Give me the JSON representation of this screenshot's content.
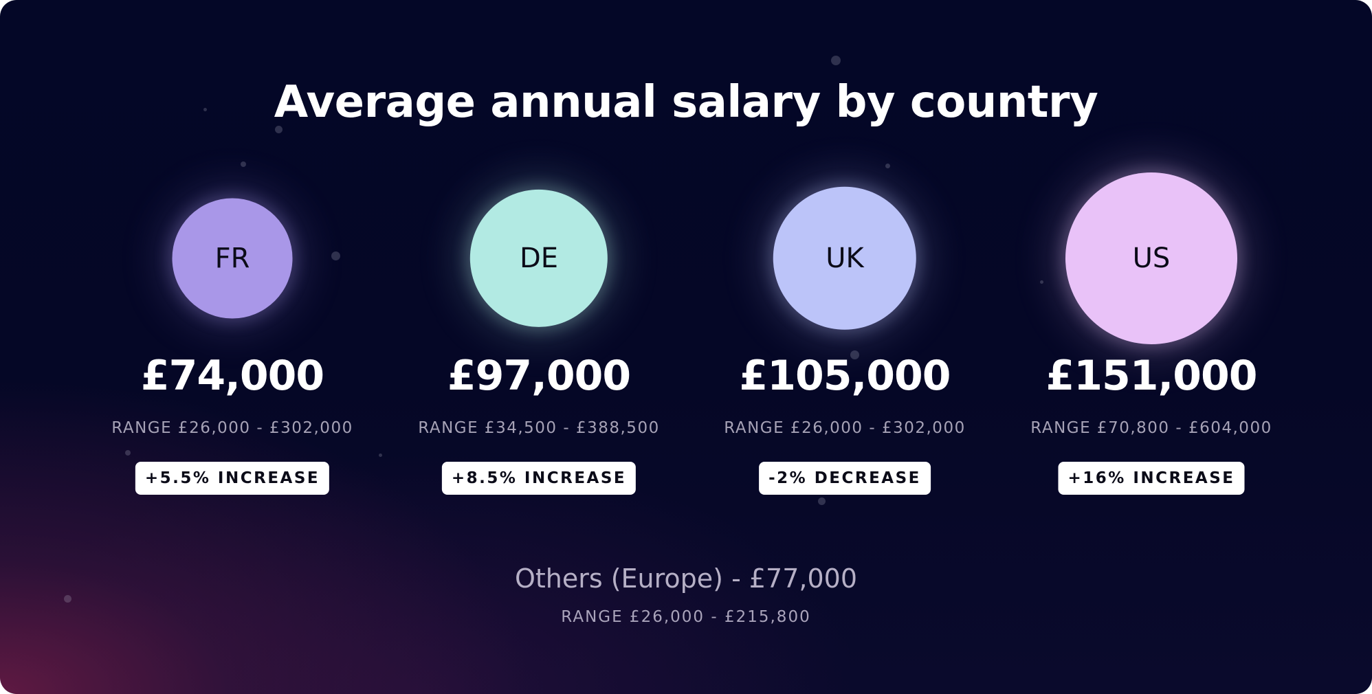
{
  "chart_data": {
    "type": "bubble",
    "title": "Average annual salary by country",
    "currency": "£",
    "countries": [
      {
        "code": "FR",
        "value": 74000,
        "value_label": "£74,000",
        "range": [
          26000,
          302000
        ],
        "range_label": "RANGE £26,000 - £302,000",
        "change_pct": 5.5,
        "change_label": "+5.5% INCREASE",
        "color": "#a997e8"
      },
      {
        "code": "DE",
        "value": 97000,
        "value_label": "£97,000",
        "range": [
          34500,
          388500
        ],
        "range_label": "RANGE £34,500 - £388,500",
        "change_pct": 8.5,
        "change_label": "+8.5% INCREASE",
        "color": "#b2eae3"
      },
      {
        "code": "UK",
        "value": 105000,
        "value_label": "£105,000",
        "range": [
          26000,
          302000
        ],
        "range_label": "RANGE £26,000 - £302,000",
        "change_pct": -2,
        "change_label": "-2% DECREASE",
        "color": "#bcc4f9"
      },
      {
        "code": "US",
        "value": 151000,
        "value_label": "£151,000",
        "range": [
          70800,
          604000
        ],
        "range_label": "RANGE £70,800 - £604,000",
        "change_pct": 16,
        "change_label": "+16% INCREASE",
        "color": "#e9c2f8"
      }
    ],
    "others": {
      "value": 77000,
      "label": "Others (Europe) - £77,000",
      "range": [
        26000,
        215800
      ],
      "range_label": "RANGE £26,000 - £215,800"
    }
  },
  "colors": {
    "background": "#040727",
    "accent_glow": "#6e1c46",
    "text": "#ffffff",
    "muted_text": "#a6a2b6"
  }
}
